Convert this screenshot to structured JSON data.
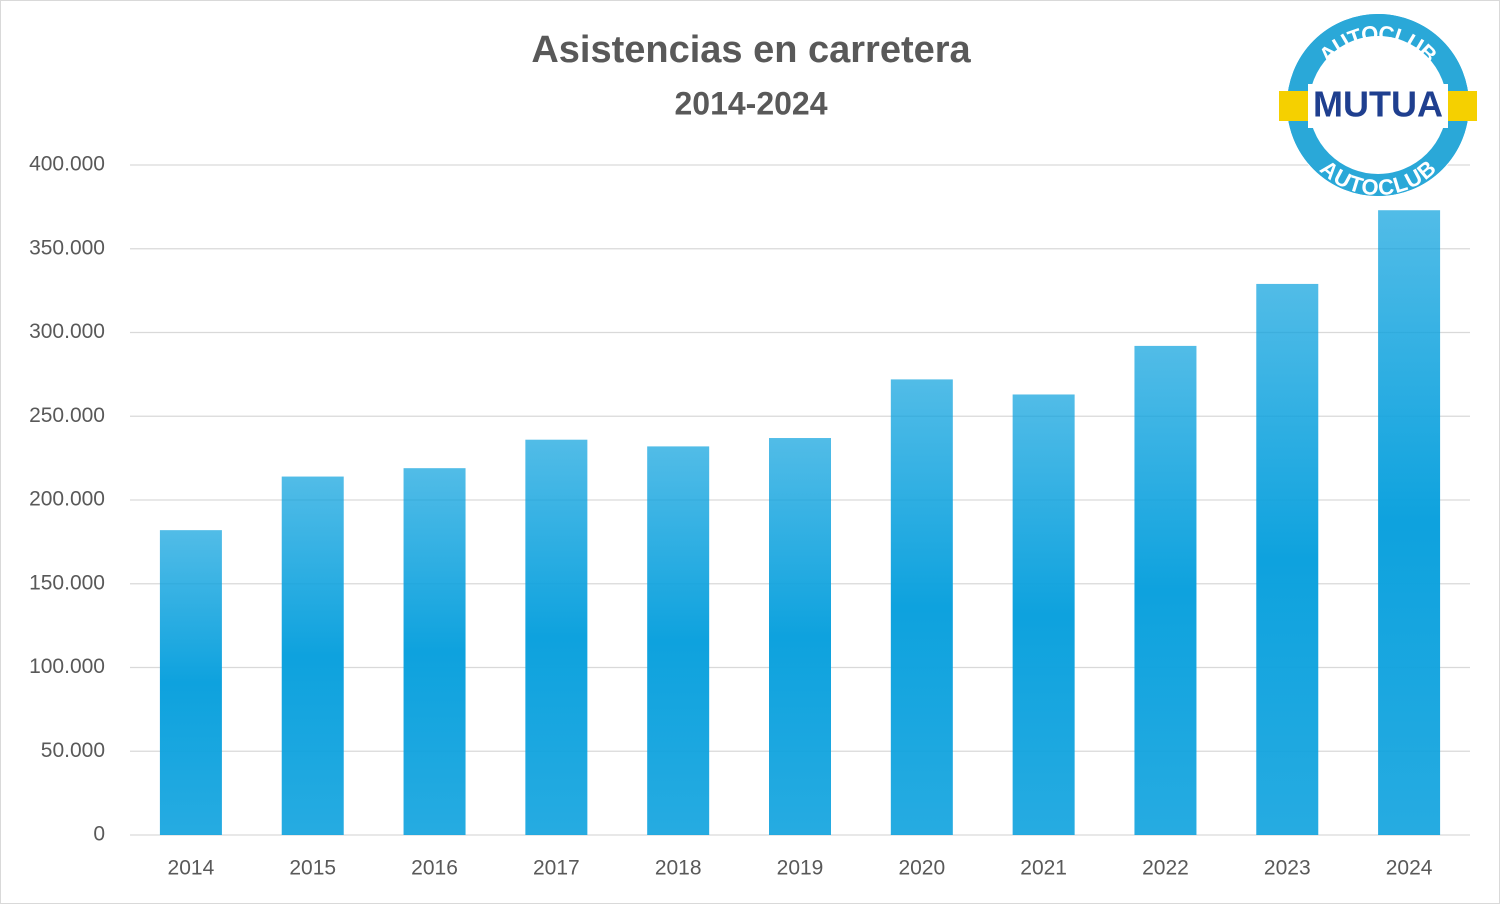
{
  "chart_data": {
    "type": "bar",
    "title": "Asistencias en carretera",
    "subtitle": "2014-2024",
    "categories": [
      "2014",
      "2015",
      "2016",
      "2017",
      "2018",
      "2019",
      "2020",
      "2021",
      "2022",
      "2023",
      "2024"
    ],
    "values": [
      182000,
      214000,
      219000,
      236000,
      232000,
      237000,
      272000,
      263000,
      292000,
      329000,
      373000
    ],
    "color": "#0ea2de",
    "ylim": [
      0,
      400000
    ],
    "yticks": [
      0,
      {
        "value": 50000,
        "label": "50.000"
      },
      {
        "value": 100000,
        "label": "100.000"
      },
      {
        "value": 150000,
        "label": "150.000"
      },
      {
        "value": 200000,
        "label": "200.000"
      },
      {
        "value": 250000,
        "label": "250.000"
      },
      {
        "value": 300000,
        "label": "300.000"
      },
      {
        "value": 350000,
        "label": "350.000"
      },
      {
        "value": 400000,
        "label": "400.000"
      }
    ],
    "grid": true,
    "logo": {
      "top": "AUTOCLUB",
      "center": "MUTUA",
      "bottom": "AUTOCLUB"
    }
  }
}
